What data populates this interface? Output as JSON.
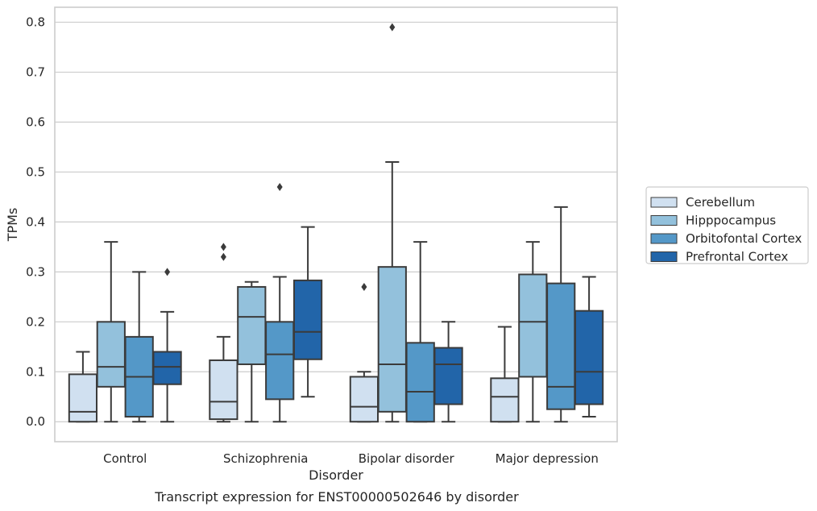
{
  "chart_data": {
    "type": "boxplot",
    "title": "",
    "caption": "Transcript expression for ENST00000502646 by disorder",
    "xlabel": "Disorder",
    "ylabel": "TPMs",
    "ylim": [
      -0.04,
      0.83
    ],
    "yticks": [
      0.0,
      0.1,
      0.2,
      0.3,
      0.4,
      0.5,
      0.6,
      0.7,
      0.8
    ],
    "ytick_labels": [
      "0.0",
      "0.1",
      "0.2",
      "0.3",
      "0.4",
      "0.5",
      "0.6",
      "0.7",
      "0.8"
    ],
    "grid": "horizontal",
    "legend_position": "right",
    "categories": [
      "Control",
      "Schizophrenia",
      "Bipolar disorder",
      "Major depression"
    ],
    "series": [
      {
        "name": "Cerebellum",
        "color": "#d0e0f0",
        "boxes": [
          {
            "whislo": 0.0,
            "q1": 0.0,
            "med": 0.02,
            "q3": 0.095,
            "whishi": 0.14,
            "fliers": []
          },
          {
            "whislo": 0.0,
            "q1": 0.005,
            "med": 0.04,
            "q3": 0.123,
            "whishi": 0.17,
            "fliers": [
              0.33,
              0.35
            ]
          },
          {
            "whislo": 0.0,
            "q1": 0.0,
            "med": 0.03,
            "q3": 0.09,
            "whishi": 0.1,
            "fliers": [
              0.27
            ]
          },
          {
            "whislo": 0.0,
            "q1": 0.0,
            "med": 0.05,
            "q3": 0.087,
            "whishi": 0.19,
            "fliers": []
          }
        ]
      },
      {
        "name": "Hipppocampus",
        "color": "#93c1dc",
        "boxes": [
          {
            "whislo": 0.0,
            "q1": 0.07,
            "med": 0.11,
            "q3": 0.2,
            "whishi": 0.36,
            "fliers": []
          },
          {
            "whislo": 0.0,
            "q1": 0.115,
            "med": 0.21,
            "q3": 0.27,
            "whishi": 0.28,
            "fliers": []
          },
          {
            "whislo": 0.0,
            "q1": 0.02,
            "med": 0.115,
            "q3": 0.31,
            "whishi": 0.52,
            "fliers": [
              0.79
            ]
          },
          {
            "whislo": 0.0,
            "q1": 0.09,
            "med": 0.2,
            "q3": 0.295,
            "whishi": 0.36,
            "fliers": []
          }
        ]
      },
      {
        "name": "Orbitofontal Cortex",
        "color": "#5498c8",
        "boxes": [
          {
            "whislo": 0.0,
            "q1": 0.01,
            "med": 0.09,
            "q3": 0.17,
            "whishi": 0.3,
            "fliers": []
          },
          {
            "whislo": 0.0,
            "q1": 0.045,
            "med": 0.135,
            "q3": 0.2,
            "whishi": 0.29,
            "fliers": [
              0.47
            ]
          },
          {
            "whislo": 0.0,
            "q1": 0.0,
            "med": 0.06,
            "q3": 0.158,
            "whishi": 0.36,
            "fliers": []
          },
          {
            "whislo": 0.0,
            "q1": 0.025,
            "med": 0.07,
            "q3": 0.277,
            "whishi": 0.43,
            "fliers": []
          }
        ]
      },
      {
        "name": "Prefrontal Cortex",
        "color": "#2265a9",
        "boxes": [
          {
            "whislo": 0.0,
            "q1": 0.075,
            "med": 0.11,
            "q3": 0.14,
            "whishi": 0.22,
            "fliers": [
              0.3
            ]
          },
          {
            "whislo": 0.05,
            "q1": 0.125,
            "med": 0.18,
            "q3": 0.283,
            "whishi": 0.39,
            "fliers": []
          },
          {
            "whislo": 0.0,
            "q1": 0.035,
            "med": 0.115,
            "q3": 0.148,
            "whishi": 0.2,
            "fliers": []
          },
          {
            "whislo": 0.01,
            "q1": 0.035,
            "med": 0.1,
            "q3": 0.222,
            "whishi": 0.29,
            "fliers": []
          }
        ]
      }
    ]
  }
}
